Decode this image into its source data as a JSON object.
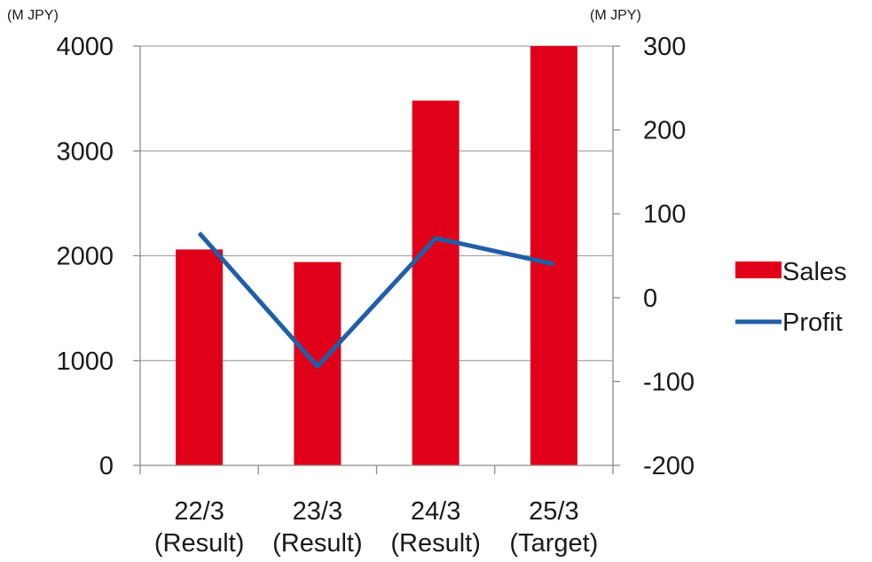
{
  "chart_data": {
    "type": "bar+line",
    "categories": [
      [
        "22/3",
        "(Result)"
      ],
      [
        "23/3",
        "(Result)"
      ],
      [
        "24/3",
        "(Result)"
      ],
      [
        "25/3",
        "(Target)"
      ]
    ],
    "series": [
      {
        "name": "Sales",
        "type": "bar",
        "axis": "left",
        "color": "#e1001a",
        "values": [
          2060,
          1940,
          3480,
          4000
        ]
      },
      {
        "name": "Profit",
        "type": "line",
        "axis": "right",
        "color": "#1f5fa8",
        "values": [
          77,
          -82,
          71,
          40
        ]
      }
    ],
    "y_left": {
      "unit": "(M JPY)",
      "ylim": [
        0,
        4000
      ],
      "ticks": [
        0,
        1000,
        2000,
        3000,
        4000
      ]
    },
    "y_right": {
      "unit": "(M JPY)",
      "ylim": [
        -200,
        300
      ],
      "ticks": [
        -200,
        -100,
        0,
        100,
        200,
        300
      ]
    },
    "grid": true,
    "legend_position": "right"
  }
}
